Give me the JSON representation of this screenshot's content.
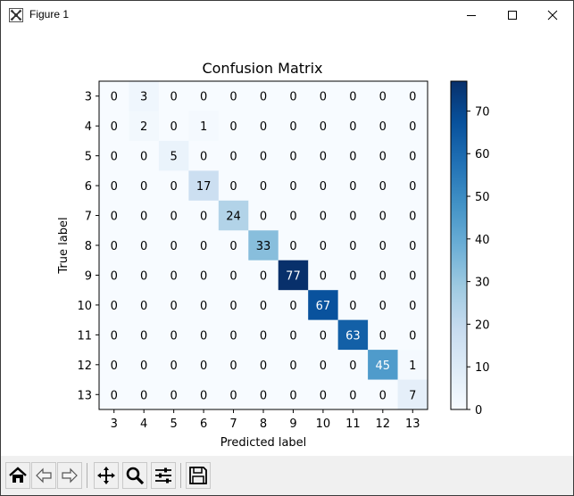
{
  "window": {
    "title": "Figure 1",
    "icons": [
      "matplotlib-icon",
      "minimize-icon",
      "maximize-icon",
      "close-icon"
    ]
  },
  "toolbar": {
    "buttons": [
      {
        "name": "home-icon"
      },
      {
        "name": "back-icon"
      },
      {
        "name": "forward-icon"
      },
      {
        "name": "pan-icon"
      },
      {
        "name": "zoom-icon"
      },
      {
        "name": "configure-subplots-icon"
      },
      {
        "name": "save-icon"
      }
    ]
  },
  "chart_data": {
    "type": "heatmap",
    "title": "Confusion Matrix",
    "xlabel": "Predicted label",
    "ylabel": "True label",
    "x_categories": [
      "3",
      "4",
      "5",
      "6",
      "7",
      "8",
      "9",
      "10",
      "11",
      "12",
      "13"
    ],
    "y_categories": [
      "3",
      "4",
      "5",
      "6",
      "7",
      "8",
      "9",
      "10",
      "11",
      "12",
      "13"
    ],
    "matrix": [
      [
        0,
        3,
        0,
        0,
        0,
        0,
        0,
        0,
        0,
        0,
        0
      ],
      [
        0,
        2,
        0,
        1,
        0,
        0,
        0,
        0,
        0,
        0,
        0
      ],
      [
        0,
        0,
        5,
        0,
        0,
        0,
        0,
        0,
        0,
        0,
        0
      ],
      [
        0,
        0,
        0,
        17,
        0,
        0,
        0,
        0,
        0,
        0,
        0
      ],
      [
        0,
        0,
        0,
        0,
        24,
        0,
        0,
        0,
        0,
        0,
        0
      ],
      [
        0,
        0,
        0,
        0,
        0,
        33,
        0,
        0,
        0,
        0,
        0
      ],
      [
        0,
        0,
        0,
        0,
        0,
        0,
        77,
        0,
        0,
        0,
        0
      ],
      [
        0,
        0,
        0,
        0,
        0,
        0,
        0,
        67,
        0,
        0,
        0
      ],
      [
        0,
        0,
        0,
        0,
        0,
        0,
        0,
        0,
        63,
        0,
        0
      ],
      [
        0,
        0,
        0,
        0,
        0,
        0,
        0,
        0,
        0,
        45,
        1
      ],
      [
        0,
        0,
        0,
        0,
        0,
        0,
        0,
        0,
        0,
        0,
        7
      ]
    ],
    "colormap": "Blues",
    "colorbar": {
      "range": [
        0,
        77
      ],
      "ticks": [
        0,
        10,
        20,
        30,
        40,
        50,
        60,
        70
      ]
    },
    "grid": false
  }
}
